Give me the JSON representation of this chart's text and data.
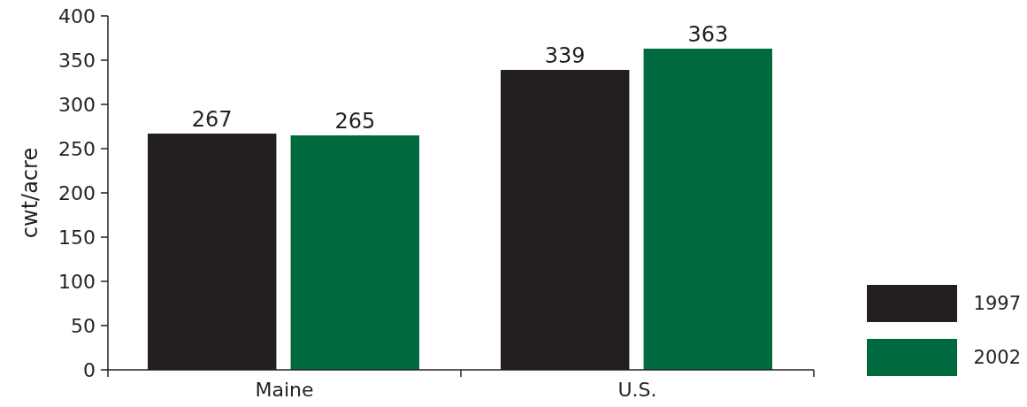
{
  "chart_data": {
    "type": "bar",
    "ylabel": "cwt/acre",
    "categories": [
      "Maine",
      "U.S."
    ],
    "series": [
      {
        "name": "1997",
        "color": "#231f20",
        "values": [
          267,
          339
        ]
      },
      {
        "name": "2002",
        "color": "#006a3e",
        "values": [
          265,
          363
        ]
      }
    ],
    "ylim": [
      0,
      400
    ],
    "yticks": [
      0,
      50,
      100,
      150,
      200,
      250,
      300,
      350,
      400
    ],
    "data_labels": true,
    "legend": "right"
  }
}
